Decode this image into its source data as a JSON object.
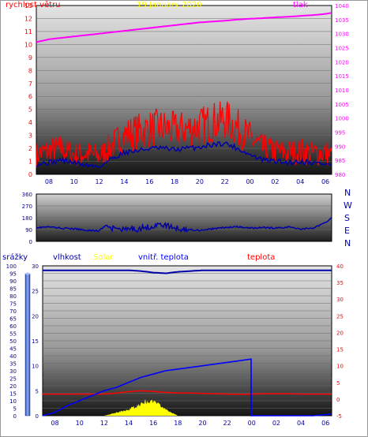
{
  "colors": {
    "wind": "#ff0000",
    "gust_line": "#0000aa",
    "pressure": "#ff00ff",
    "title": "#ffff00",
    "axis_blue": "#0000aa",
    "humidity": "#0000aa",
    "solar": "#ffff00",
    "indoor_temp": "#0000ff",
    "temperature": "#ff0000",
    "rain_tube": "#4a6fd0"
  },
  "header": {
    "date": "19.January 2020",
    "wind_label": "rychlost větru",
    "pressure_label": "tlak"
  },
  "direction_labels": [
    "N",
    "W",
    "S",
    "E",
    "N"
  ],
  "bottom_header": {
    "rain": "srážky",
    "humidity": "vlhkost",
    "solar": "Solar",
    "indoor": "vnitř. teplota",
    "temp": "teplota"
  },
  "chart_data": [
    {
      "type": "line",
      "title": "19.January 2020",
      "series_labels": [
        "rychlost větru",
        "tlak"
      ],
      "x_ticks": [
        "08",
        "10",
        "12",
        "14",
        "16",
        "18",
        "20",
        "22",
        "00",
        "02",
        "04",
        "06"
      ],
      "left_axis": {
        "ylim": [
          0,
          13
        ],
        "ticks": [
          0,
          1,
          2,
          3,
          4,
          5,
          6,
          7,
          8,
          9,
          10,
          11,
          12,
          13
        ]
      },
      "right_axis": {
        "ylim": [
          980,
          1040
        ],
        "ticks": [
          980,
          985,
          990,
          995,
          1000,
          1005,
          1010,
          1015,
          1020,
          1025,
          1030,
          1035,
          1040
        ]
      },
      "series": [
        {
          "name": "rychlost větru",
          "axis": "left",
          "hours": [
            7,
            8,
            9,
            10,
            11,
            12,
            13,
            14,
            15,
            16,
            17,
            18,
            19,
            20,
            21,
            22,
            23,
            0,
            1,
            2,
            3,
            4,
            5,
            6,
            6.5
          ],
          "values": [
            1.5,
            1.8,
            2.0,
            1.5,
            1.6,
            1.4,
            2.2,
            3.0,
            3.3,
            3.5,
            3.6,
            3.4,
            3.5,
            3.7,
            4.0,
            4.3,
            3.6,
            2.8,
            2.0,
            1.8,
            1.7,
            1.8,
            1.6,
            1.7,
            1.4
          ]
        },
        {
          "axis": "left",
          "hours": [
            7,
            8,
            9,
            10,
            11,
            12,
            13,
            14,
            15,
            16,
            17,
            18,
            19,
            20,
            21,
            22,
            23,
            0,
            1,
            2,
            3,
            4,
            5,
            6,
            6.5
          ],
          "values": [
            0.8,
            0.9,
            1.1,
            0.9,
            0.7,
            0.6,
            1.2,
            1.7,
            1.8,
            2.0,
            2.0,
            1.9,
            2.0,
            2.1,
            2.3,
            2.4,
            2.0,
            1.5,
            1.1,
            1.0,
            0.9,
            1.0,
            0.9,
            0.8,
            0.7
          ]
        },
        {
          "name": "tlak",
          "axis": "right",
          "hours": [
            7,
            8,
            9,
            10,
            11,
            12,
            13,
            14,
            15,
            16,
            17,
            18,
            19,
            20,
            21,
            22,
            23,
            0,
            1,
            2,
            3,
            4,
            5,
            6,
            6.5
          ],
          "values": [
            1027,
            1028,
            1028.5,
            1029,
            1029.5,
            1030,
            1030.5,
            1031,
            1031.5,
            1032,
            1032.5,
            1033,
            1033.5,
            1034,
            1034.3,
            1034.6,
            1035,
            1035.3,
            1035.5,
            1035.8,
            1036,
            1036.3,
            1036.6,
            1037,
            1037.4
          ]
        }
      ]
    },
    {
      "type": "line",
      "series_labels": [
        "N",
        "W",
        "S",
        "E",
        "N"
      ],
      "x_ticks": [],
      "left_axis": {
        "ylim": [
          0,
          360
        ],
        "ticks": [
          0,
          90,
          180,
          270,
          360
        ]
      },
      "series": [
        {
          "name": "wind direction",
          "hours": [
            7,
            8,
            9,
            10,
            11,
            12,
            12.5,
            13,
            14,
            15,
            16,
            17,
            18,
            19,
            20,
            21,
            22,
            23,
            0,
            1,
            2,
            3,
            4,
            5,
            6,
            6.5
          ],
          "values": [
            105,
            110,
            100,
            95,
            85,
            80,
            120,
            100,
            85,
            95,
            110,
            130,
            100,
            90,
            85,
            95,
            105,
            110,
            100,
            105,
            100,
            110,
            95,
            100,
            140,
            185
          ]
        }
      ]
    },
    {
      "type": "line",
      "series_labels": [
        "srážky",
        "vlhkost",
        "Solar",
        "vnitř. teplota",
        "teplota"
      ],
      "x_ticks": [
        "08",
        "10",
        "12",
        "14",
        "16",
        "18",
        "20",
        "22",
        "00",
        "02",
        "04",
        "06"
      ],
      "left_axis": {
        "ylim": [
          0,
          100
        ],
        "ticks": [
          0,
          5,
          10,
          15,
          20,
          25,
          30,
          35,
          40,
          45,
          50,
          55,
          60,
          65,
          70,
          75,
          80,
          85,
          90,
          95,
          100
        ]
      },
      "rain_axis": {
        "ylim": [
          0,
          30
        ],
        "ticks": [
          0,
          5,
          10,
          15,
          20,
          25,
          30
        ]
      },
      "right_axis": {
        "ylim": [
          -5,
          40
        ],
        "ticks": [
          -5,
          0,
          5,
          10,
          15,
          20,
          25,
          30,
          35,
          40
        ]
      },
      "series": [
        {
          "name": "vlhkost",
          "axis": "left",
          "hours": [
            7,
            8,
            9,
            10,
            11,
            12,
            13,
            14,
            15,
            16,
            17,
            18,
            19,
            20,
            21,
            22,
            23,
            0,
            1,
            2,
            3,
            4,
            5,
            6,
            6.5
          ],
          "values": [
            97,
            97,
            97,
            97,
            97,
            97,
            97,
            97,
            96.5,
            95.5,
            95,
            96,
            96.5,
            97,
            97,
            97,
            97,
            97,
            97,
            97,
            97,
            97,
            97,
            97,
            97
          ]
        },
        {
          "name": "Solar",
          "axis": "left",
          "hours": [
            12,
            12.5,
            13,
            13.5,
            14,
            14.5,
            15,
            15.5,
            16,
            16.5,
            17,
            17.5,
            18
          ],
          "values": [
            0,
            1,
            2,
            3,
            4,
            6,
            8,
            10,
            9,
            7,
            4,
            2,
            0
          ]
        },
        {
          "name": "vnitř. teplota",
          "axis": "right",
          "hours": [
            7,
            8,
            9,
            10,
            11,
            12,
            13,
            14,
            15,
            16,
            17,
            18,
            19,
            20,
            21,
            22,
            23,
            23.95,
            23.96,
            0,
            1,
            2,
            3,
            4,
            5,
            6,
            6.5
          ],
          "values": [
            -5,
            -4,
            -2,
            -0.5,
            1,
            2.5,
            3.5,
            5,
            6.5,
            7.5,
            8.5,
            9,
            9.5,
            10,
            10.5,
            11,
            11.5,
            12,
            -5,
            -5,
            -5,
            -5,
            -5,
            -5,
            -5,
            -4.7,
            -4.5
          ]
        },
        {
          "name": "teplota",
          "axis": "right",
          "hours": [
            7,
            8,
            9,
            10,
            11,
            12,
            13,
            14,
            15,
            16,
            17,
            18,
            19,
            20,
            21,
            22,
            23,
            0,
            1,
            2,
            3,
            4,
            5,
            6,
            6.5
          ],
          "values": [
            1.5,
            1.5,
            1.5,
            1.5,
            1.5,
            1.5,
            1.8,
            2.2,
            2.5,
            2.3,
            2.0,
            1.8,
            1.8,
            1.7,
            1.6,
            1.5,
            1.4,
            1.5,
            1.6,
            1.6,
            1.6,
            1.5,
            1.5,
            1.5,
            1.5
          ]
        }
      ]
    }
  ]
}
